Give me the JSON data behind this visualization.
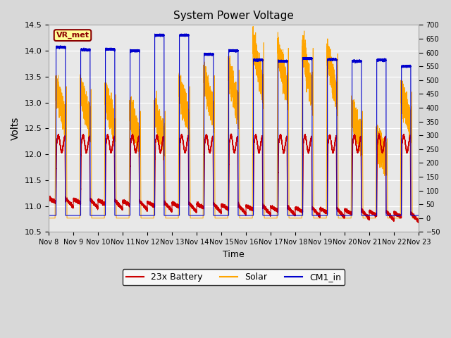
{
  "title": "System Power Voltage",
  "xlabel": "Time",
  "ylabel": "Volts",
  "ylim_left": [
    10.5,
    14.5
  ],
  "ylim_right": [
    -50,
    700
  ],
  "yticks_left": [
    10.5,
    11.0,
    11.5,
    12.0,
    12.5,
    13.0,
    13.5,
    14.0,
    14.5
  ],
  "yticks_right": [
    -50,
    0,
    50,
    100,
    150,
    200,
    250,
    300,
    350,
    400,
    450,
    500,
    550,
    600,
    650,
    700
  ],
  "xtick_labels": [
    "Nov 8",
    "Nov 9",
    "Nov 10",
    "Nov 11",
    "Nov 12",
    "Nov 13",
    "Nov 14",
    "Nov 15",
    "Nov 16",
    "Nov 17",
    "Nov 18",
    "Nov 19",
    "Nov 20",
    "Nov 21",
    "Nov 22",
    "Nov 23"
  ],
  "background_color": "#d8d8d8",
  "plot_bg_color": "#e8e8e8",
  "grid_color": "#ffffff",
  "annotation_text": "VR_met",
  "annotation_color": "#8b0000",
  "annotation_bg": "#ffff99",
  "legend_items": [
    "23x Battery",
    "Solar",
    "CM1_in"
  ],
  "color_battery": "#cc0000",
  "color_solar": "#ffa500",
  "color_cm1": "#0000cc",
  "figsize": [
    6.4,
    4.8
  ],
  "dpi": 100
}
